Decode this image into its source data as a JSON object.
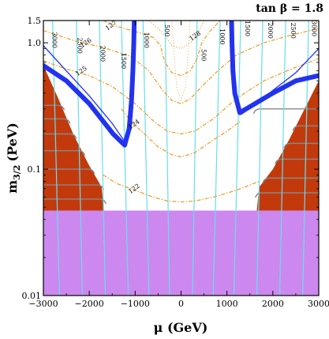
{
  "chart_data": {
    "type": "contour",
    "annotation": "tan β = 1.8",
    "xlabel": "μ  (GeV)",
    "ylabel": "m3/2 (PeV)",
    "ylabel_main": "m",
    "ylabel_sub": "3/2",
    "ylabel_unit": "(PeV)",
    "xlim": [
      -3000,
      3000
    ],
    "ylim": [
      0.01,
      1.5
    ],
    "yscale": "log",
    "x_ticks": [
      {
        "value": -3000,
        "label": "−3000"
      },
      {
        "value": -2000,
        "label": "−2000"
      },
      {
        "value": -1000,
        "label": "−1000"
      },
      {
        "value": 0,
        "label": "0"
      },
      {
        "value": 1000,
        "label": "1000"
      },
      {
        "value": 2000,
        "label": "2000"
      },
      {
        "value": 3000,
        "label": "3000"
      }
    ],
    "y_ticks": [
      {
        "value": 0.01,
        "label": "0.01"
      },
      {
        "value": 0.1,
        "label": "0.1"
      },
      {
        "value": 1.0,
        "label": "1.0"
      },
      {
        "value": 1.5,
        "label": "1.5"
      }
    ],
    "colors": {
      "excluded_purple": "#cc88ee",
      "excluded_red": "#c23a0c",
      "blue_band": "#2233ee",
      "cyan_lines": "#66ddee",
      "higgs_contours": "#ee9922",
      "grey_lines": "#888888"
    },
    "purple_region": {
      "y_top": 0.047
    },
    "left_red_region": [
      {
        "x": -3000,
        "y": 0.047
      },
      {
        "x": -1680,
        "y": 0.047
      },
      {
        "x": -1730,
        "y": 0.072
      },
      {
        "x": -2020,
        "y": 0.11
      },
      {
        "x": -2350,
        "y": 0.19
      },
      {
        "x": -2700,
        "y": 0.38
      },
      {
        "x": -3000,
        "y": 0.66
      }
    ],
    "right_red_region": [
      {
        "x": 3000,
        "y": 0.047
      },
      {
        "x": 1650,
        "y": 0.047
      },
      {
        "x": 1700,
        "y": 0.072
      },
      {
        "x": 2000,
        "y": 0.1
      },
      {
        "x": 2350,
        "y": 0.17
      },
      {
        "x": 2650,
        "y": 0.28
      },
      {
        "x": 3000,
        "y": 0.5
      }
    ],
    "grey_lines": [
      {
        "side": "left",
        "y": 0.32
      },
      {
        "side": "left",
        "y": 0.25
      },
      {
        "side": "left",
        "y": 0.19
      },
      {
        "side": "left",
        "y": 0.14
      },
      {
        "side": "left",
        "y": 0.1
      },
      {
        "side": "left",
        "y": 0.075
      },
      {
        "side": "left",
        "y": 0.058
      },
      {
        "side": "right",
        "y": 0.3
      },
      {
        "side": "right",
        "y": 0.22
      },
      {
        "side": "right",
        "y": 0.16
      },
      {
        "side": "right",
        "y": 0.12
      },
      {
        "side": "right",
        "y": 0.085
      },
      {
        "side": "right",
        "y": 0.065
      }
    ],
    "left_blue_band": [
      {
        "x": -1020,
        "y": 1.5
      },
      {
        "x": -1030,
        "y": 1.0
      },
      {
        "x": -1050,
        "y": 0.6
      },
      {
        "x": -1080,
        "y": 0.35
      },
      {
        "x": -1130,
        "y": 0.21
      },
      {
        "x": -1230,
        "y": 0.155
      },
      {
        "x": -1480,
        "y": 0.19
      },
      {
        "x": -2000,
        "y": 0.33
      },
      {
        "x": -2500,
        "y": 0.5
      },
      {
        "x": -3000,
        "y": 0.66
      }
    ],
    "right_blue_band": [
      {
        "x": 1100,
        "y": 1.5
      },
      {
        "x": 1110,
        "y": 1.0
      },
      {
        "x": 1130,
        "y": 0.6
      },
      {
        "x": 1170,
        "y": 0.4
      },
      {
        "x": 1280,
        "y": 0.28
      },
      {
        "x": 1550,
        "y": 0.32
      },
      {
        "x": 2000,
        "y": 0.4
      },
      {
        "x": 2500,
        "y": 0.5
      },
      {
        "x": 3000,
        "y": 0.55
      }
    ],
    "left_blue_thin": [
      {
        "x": -3000,
        "y": 0.95
      },
      {
        "x": -2500,
        "y": 0.6
      },
      {
        "x": -2000,
        "y": 0.38
      },
      {
        "x": -1500,
        "y": 0.23
      },
      {
        "x": -1250,
        "y": 0.17
      }
    ],
    "right_blue_thin": [
      {
        "x": 3000,
        "y": 0.9
      },
      {
        "x": 2500,
        "y": 0.58
      },
      {
        "x": 2000,
        "y": 0.42
      },
      {
        "x": 1600,
        "y": 0.32
      },
      {
        "x": 1300,
        "y": 0.27
      }
    ],
    "cyan_contours": [
      {
        "x_top": -2800,
        "x_bottom": -2650,
        "label": "3000",
        "label_x": -2800,
        "label_y": 1.05
      },
      {
        "x_top": -2280,
        "x_bottom": -2150,
        "label": "2500",
        "label_x": -2250,
        "label_y": 0.95
      },
      {
        "x_top": -1780,
        "x_bottom": -1650,
        "label": "2000",
        "label_x": -1750,
        "label_y": 0.82
      },
      {
        "x_top": -1300,
        "x_bottom": -1150,
        "label": "1500",
        "label_x": -1300,
        "label_y": 0.72
      },
      {
        "x_top": -830,
        "x_bottom": -700,
        "label": "1000",
        "label_x": -800,
        "label_y": 1.05
      },
      {
        "x_top": -350,
        "x_bottom": -250,
        "label": "500",
        "label_x": -350,
        "label_y": 1.25
      },
      {
        "x_top": 350,
        "x_bottom": 250,
        "label": "500",
        "label_x": 450,
        "label_y": 0.8
      },
      {
        "x_top": 850,
        "x_bottom": 700,
        "label": "1000",
        "label_x": 850,
        "label_y": 1.12
      },
      {
        "x_top": 1300,
        "x_bottom": 1150,
        "label": "1500",
        "label_x": 1400,
        "label_y": 1.3
      },
      {
        "x_top": 1780,
        "x_bottom": 1650,
        "label": "2000",
        "label_x": 1900,
        "label_y": 1.25
      },
      {
        "x_top": 2280,
        "x_bottom": 2150,
        "label": "2500",
        "label_x": 2400,
        "label_y": 1.25
      },
      {
        "x_top": 2780,
        "x_bottom": 2650,
        "label": "3000",
        "label_x": 2850,
        "label_y": 1.3
      }
    ],
    "higgs_contours": [
      {
        "label": "127",
        "label_x": -1500,
        "label_y": 1.33,
        "points": [
          [
            -1700,
            1.5
          ],
          [
            -1400,
            1.35
          ],
          [
            -900,
            1.2
          ],
          [
            -600,
            1.1
          ],
          [
            -450,
            0.95
          ],
          [
            -350,
            0.7
          ],
          [
            -200,
            0.58
          ],
          [
            0,
            0.55
          ],
          [
            200,
            0.6
          ],
          [
            350,
            0.75
          ],
          [
            450,
            1.0
          ],
          [
            600,
            1.2
          ],
          [
            850,
            1.5
          ]
        ]
      },
      {
        "label": "126",
        "label_x": -2050,
        "label_y": 0.97,
        "points": [
          [
            -3000,
            1.25
          ],
          [
            -2300,
            1.03
          ],
          [
            -1700,
            0.92
          ],
          [
            -1100,
            0.78
          ],
          [
            -700,
            0.6
          ],
          [
            -400,
            0.42
          ],
          [
            -200,
            0.35
          ],
          [
            0,
            0.33
          ],
          [
            200,
            0.36
          ],
          [
            450,
            0.45
          ],
          [
            800,
            0.6
          ],
          [
            1200,
            0.8
          ],
          [
            1800,
            1.0
          ],
          [
            2400,
            1.15
          ],
          [
            3000,
            1.3
          ]
        ]
      },
      {
        "label": "125",
        "label_x": -2150,
        "label_y": 0.58,
        "points": [
          [
            -3000,
            0.72
          ],
          [
            -2500,
            0.62
          ],
          [
            -2000,
            0.55
          ],
          [
            -1500,
            0.45
          ],
          [
            -1000,
            0.33
          ],
          [
            -600,
            0.24
          ],
          [
            -300,
            0.2
          ],
          [
            0,
            0.19
          ],
          [
            300,
            0.2
          ],
          [
            700,
            0.25
          ],
          [
            1200,
            0.36
          ],
          [
            1800,
            0.5
          ],
          [
            2400,
            0.62
          ],
          [
            3000,
            0.75
          ]
        ]
      },
      {
        "label": "124",
        "label_x": -1000,
        "label_y": 0.22,
        "points": [
          [
            -1300,
            0.3
          ],
          [
            -1100,
            0.24
          ],
          [
            -800,
            0.19
          ],
          [
            -500,
            0.15
          ],
          [
            -200,
            0.13
          ],
          [
            0,
            0.125
          ],
          [
            300,
            0.135
          ],
          [
            700,
            0.17
          ],
          [
            1000,
            0.2
          ],
          [
            1300,
            0.24
          ]
        ]
      },
      {
        "label": "122",
        "label_x": -1000,
        "label_y": 0.068,
        "points": [
          [
            -1700,
            0.09
          ],
          [
            -1400,
            0.077
          ],
          [
            -1000,
            0.068
          ],
          [
            -600,
            0.06
          ],
          [
            -300,
            0.056
          ],
          [
            0,
            0.055
          ],
          [
            300,
            0.056
          ],
          [
            700,
            0.06
          ],
          [
            1200,
            0.068
          ],
          [
            1700,
            0.08
          ]
        ]
      },
      {
        "label": "128",
        "label_x": 330,
        "label_y": 1.1,
        "points": [
          [
            -700,
            1.5
          ],
          [
            -400,
            1.2
          ],
          [
            -200,
            0.95
          ],
          [
            0,
            0.9
          ],
          [
            200,
            1.0
          ],
          [
            350,
            1.15
          ],
          [
            500,
            1.5
          ]
        ]
      }
    ],
    "center_dotted": {
      "points": [
        [
          -200,
          1.5
        ],
        [
          -150,
          0.8
        ],
        [
          -100,
          0.45
        ],
        [
          0,
          0.35
        ],
        [
          100,
          0.45
        ],
        [
          150,
          0.8
        ],
        [
          200,
          1.5
        ]
      ]
    }
  }
}
